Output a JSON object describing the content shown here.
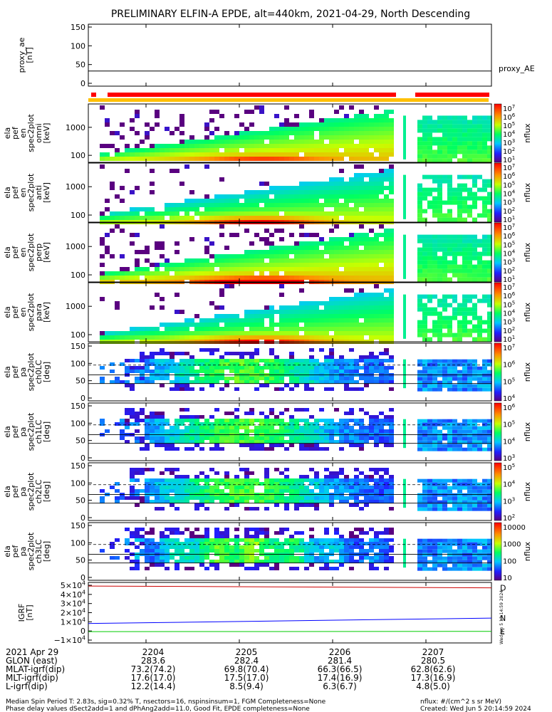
{
  "title": "PRELIMINARY ELFIN-A EPDE, alt=440km, 2021-04-29, North Descending",
  "panels": [
    {
      "id": "proxy_ae",
      "ylabel": [
        "proxy_ae",
        "[nT]"
      ],
      "ticks": [
        "150",
        "100",
        "50",
        "0"
      ],
      "legend": "proxy_AE",
      "value_line": 37
    },
    {
      "id": "omni",
      "ylabel": [
        "ela",
        "pef",
        "en",
        "spec2plot",
        "omni",
        "[keV]"
      ],
      "ticks": [
        "1000",
        "100"
      ],
      "cbar_label": "nflux",
      "cbar_ticks": [
        "10^7",
        "10^6",
        "10^5",
        "10^4",
        "10^3",
        "10^2",
        "10^1"
      ]
    },
    {
      "id": "anti",
      "ylabel": [
        "ela",
        "pef",
        "en",
        "spec2plot",
        "anti",
        "[keV]"
      ],
      "ticks": [
        "1000",
        "100"
      ],
      "cbar_label": "nflux",
      "cbar_ticks": [
        "10^7",
        "10^6",
        "10^5",
        "10^4",
        "10^3",
        "10^2",
        "10^1"
      ]
    },
    {
      "id": "perp",
      "ylabel": [
        "ela",
        "pef",
        "en",
        "spec2plot",
        "perp",
        "[keV]"
      ],
      "ticks": [
        "1000",
        "100"
      ],
      "cbar_label": "nflux",
      "cbar_ticks": [
        "10^7",
        "10^6",
        "10^5",
        "10^4",
        "10^3",
        "10^2",
        "10^1"
      ]
    },
    {
      "id": "para",
      "ylabel": [
        "ela",
        "pef",
        "en",
        "spec2plot",
        "para",
        "[keV]"
      ],
      "ticks": [
        "1000",
        "100"
      ],
      "cbar_label": "nflux",
      "cbar_ticks": [
        "10^7",
        "10^6",
        "10^5",
        "10^4",
        "10^3",
        "10^2",
        "10^1"
      ]
    },
    {
      "id": "ch0LC",
      "ylabel": [
        "ela",
        "pef",
        "pa",
        "spec2plot",
        "ch0LC",
        "[deg]"
      ],
      "ticks": [
        "150",
        "100",
        "50",
        "0"
      ],
      "cbar_label": "nflux",
      "cbar_ticks": [
        "10^7",
        "10^6",
        "10^5",
        "10^4"
      ]
    },
    {
      "id": "ch1LC",
      "ylabel": [
        "ela",
        "pef",
        "pa",
        "spec2plot",
        "ch1LC",
        "[deg]"
      ],
      "ticks": [
        "150",
        "100",
        "50",
        "0"
      ],
      "cbar_label": "nflux",
      "cbar_ticks": [
        "10^6",
        "10^5",
        "10^4",
        "10^3"
      ]
    },
    {
      "id": "ch2LC",
      "ylabel": [
        "ela",
        "pef",
        "pa",
        "spec2plot",
        "ch2LC",
        "[deg]"
      ],
      "ticks": [
        "150",
        "100",
        "50",
        "0"
      ],
      "cbar_label": "nflux",
      "cbar_ticks": [
        "10^5",
        "10^4",
        "10^3",
        "10^2"
      ]
    },
    {
      "id": "ch3LC",
      "ylabel": [
        "ela",
        "pef",
        "pa",
        "spec2plot",
        "ch3LC",
        "[deg]"
      ],
      "ticks": [
        "150",
        "100",
        "50",
        "0"
      ],
      "cbar_label": "nflux",
      "cbar_ticks": [
        "10000",
        "1000",
        "100",
        "10"
      ]
    },
    {
      "id": "igrf",
      "ylabel": [
        "IGRF",
        "[nT]"
      ],
      "ticks": [
        "5×10^4",
        "4×10^4",
        "3×10^4",
        "2×10^4",
        "1×10^4",
        "0",
        "−1×10^4"
      ],
      "legend": [
        "D",
        "N",
        "E"
      ]
    }
  ],
  "footer": {
    "rows": [
      {
        "label": "2021 Apr 29",
        "values": [
          "2204",
          "2205",
          "2206",
          "2207"
        ]
      },
      {
        "label": "GLON (east)",
        "values": [
          "283.6",
          "282.4",
          "281.4",
          "280.5"
        ]
      },
      {
        "label": "MLAT-igrf(dip)",
        "values": [
          "73.2(74.2)",
          "69.8(70.4)",
          "66.3(66.5)",
          "62.8(62.6)"
        ]
      },
      {
        "label": "MLT-igrf(dip)",
        "values": [
          "17.6(17.0)",
          "17.5(17.0)",
          "17.4(16.9)",
          "17.3(16.9)"
        ]
      },
      {
        "label": "L-igrf(dip)",
        "values": [
          "12.2(14.4)",
          "8.5(9.4)",
          "6.3(6.7)",
          "4.8(5.0)"
        ]
      }
    ],
    "note_line1": "Median Spin Period T: 2.83s, sig=0.32% T, nsectors=16, nspinsinsum=1, FGM Completeness=None",
    "note_line2": "Phase delay values dSect2add=1 and dPhAng2add=11.0, Good Fit, EPDE completeness=None",
    "units": "nflux: #/(cm^2 s sr MeV)",
    "created": "Created: Wed Jun  5 20:14:59 2024",
    "vertical_stamp": "Wed Jun  5 13:14:59 2024"
  },
  "colors": {
    "red_bar": "#ff0000",
    "yellow_bar": "#ffc000",
    "d_line": "#cc0000",
    "n_line": "#0000ff",
    "e_line": "#00cc00"
  },
  "chart_data": {
    "type": "heatmap",
    "x_label_times": [
      "2204",
      "2205",
      "2206",
      "2207"
    ],
    "energy_ylim_keV": [
      70,
      6000
    ],
    "pitch_ylim_deg": [
      0,
      160
    ],
    "igrf_ylim_nT": [
      -15000,
      52000
    ],
    "igrf_series": [
      {
        "name": "D",
        "start": 48000,
        "end": 46000
      },
      {
        "name": "N",
        "start": 6500,
        "end": 12500
      },
      {
        "name": "E",
        "start": -2500,
        "end": -2200
      }
    ],
    "log_scale_colorbars": true
  }
}
